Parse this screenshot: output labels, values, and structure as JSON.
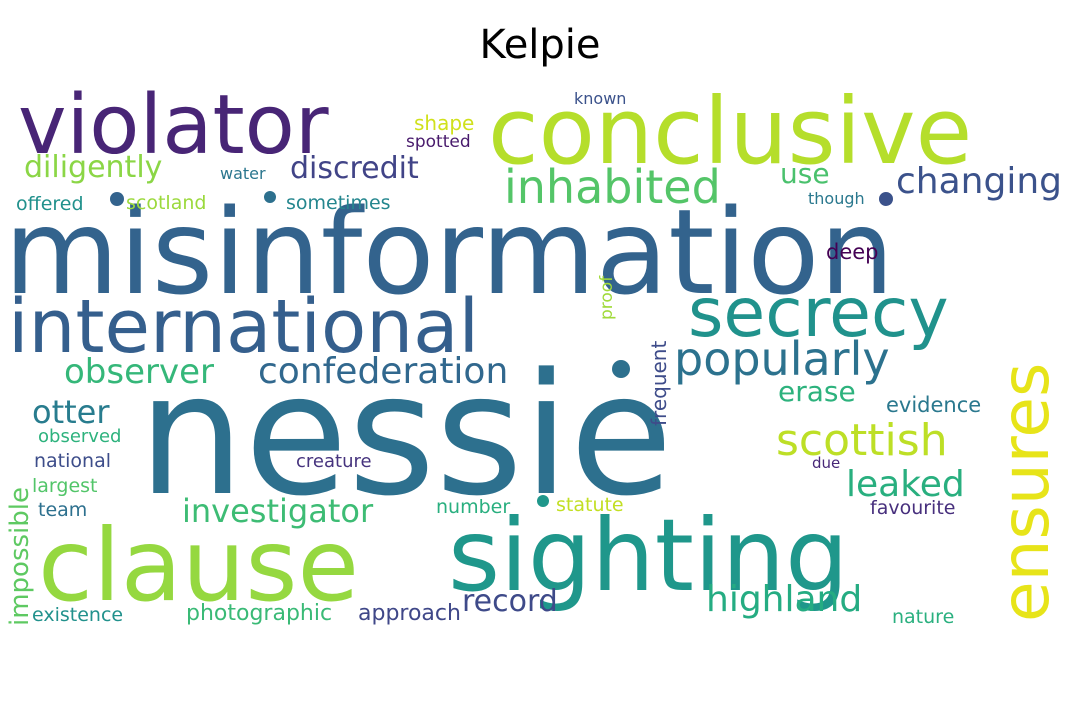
{
  "title": "Kelpie",
  "words": [
    {
      "text": "misinformation",
      "color": "#33638d"
    },
    {
      "text": "nessie",
      "color": "#2d708e"
    },
    {
      "text": "conclusive",
      "color": "#b5de2b"
    },
    {
      "text": "violator",
      "color": "#482576"
    },
    {
      "text": "international",
      "color": "#355f8d"
    },
    {
      "text": "sighting",
      "color": "#1f978b"
    },
    {
      "text": "clause",
      "color": "#95d840"
    },
    {
      "text": "ensures",
      "color": "#e7e419"
    },
    {
      "text": "secrecy",
      "color": "#20928c"
    },
    {
      "text": "inhabited",
      "color": "#54c568"
    },
    {
      "text": "popularly",
      "color": "#2c728e"
    },
    {
      "text": "scottish",
      "color": "#bddf26"
    },
    {
      "text": "confederation",
      "color": "#31688e"
    },
    {
      "text": "changing",
      "color": "#3b528b"
    },
    {
      "text": "highland",
      "color": "#25ac82"
    },
    {
      "text": "observer",
      "color": "#35b779"
    },
    {
      "text": "investigator",
      "color": "#3dbc74"
    },
    {
      "text": "leaked",
      "color": "#29af7f"
    },
    {
      "text": "discredit",
      "color": "#414487"
    },
    {
      "text": "diligently",
      "color": "#8bd646"
    },
    {
      "text": "otter",
      "color": "#287c8e"
    },
    {
      "text": "impossible",
      "color": "#5ec962"
    },
    {
      "text": "record",
      "color": "#3e4a89"
    },
    {
      "text": "erase",
      "color": "#2db27d"
    },
    {
      "text": "use",
      "color": "#4ac16d"
    },
    {
      "text": "photographic",
      "color": "#3aba76"
    },
    {
      "text": "approach",
      "color": "#3f4788"
    },
    {
      "text": "evidence",
      "color": "#2a788e"
    },
    {
      "text": "frequent",
      "color": "#3e4c8a"
    },
    {
      "text": "deep",
      "color": "#440154"
    },
    {
      "text": "shape",
      "color": "#d0e11c"
    },
    {
      "text": "spotted",
      "color": "#481a6c"
    },
    {
      "text": "scotland",
      "color": "#9bd93c"
    },
    {
      "text": "sometimes",
      "color": "#24868e"
    },
    {
      "text": "offered",
      "color": "#21918c"
    },
    {
      "text": "water",
      "color": "#2a768e"
    },
    {
      "text": "known",
      "color": "#3b528b"
    },
    {
      "text": "though",
      "color": "#2a788e"
    },
    {
      "text": "proof",
      "color": "#a0da39"
    },
    {
      "text": "observed",
      "color": "#2db27d"
    },
    {
      "text": "national",
      "color": "#3d4d8a"
    },
    {
      "text": "creature",
      "color": "#46337e"
    },
    {
      "text": "largest",
      "color": "#52c569"
    },
    {
      "text": "team",
      "color": "#2d708e"
    },
    {
      "text": "number",
      "color": "#29af7f"
    },
    {
      "text": "statute",
      "color": "#c2df23"
    },
    {
      "text": "favourite",
      "color": "#472f7d"
    },
    {
      "text": "due",
      "color": "#482878"
    },
    {
      "text": "existence",
      "color": "#21918c"
    },
    {
      "text": "nature",
      "color": "#2ab07f"
    }
  ]
}
